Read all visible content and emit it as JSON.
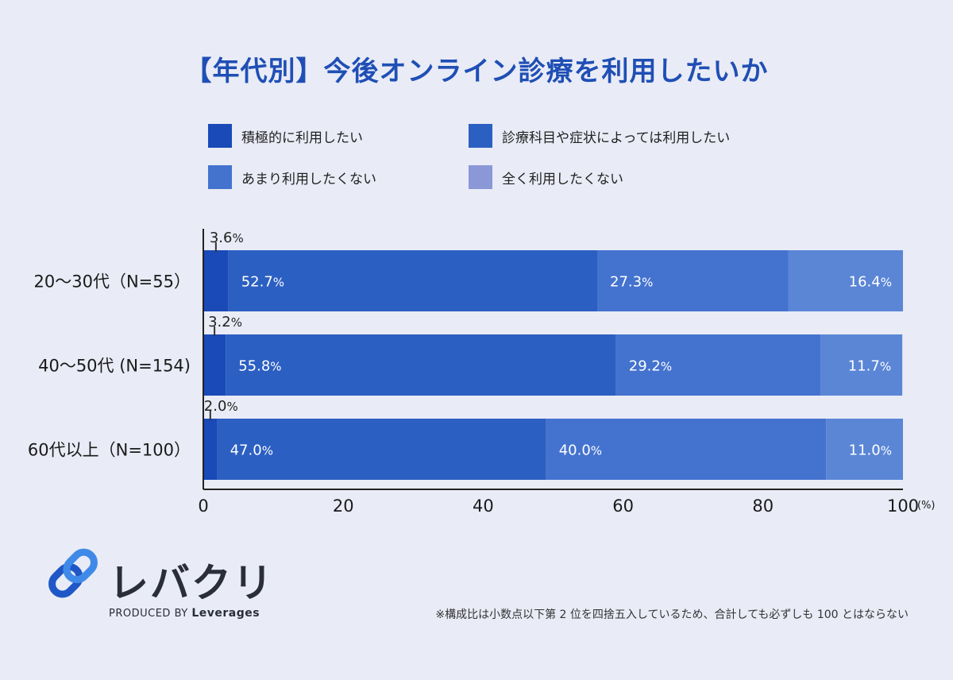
{
  "title": "【年代別】今後オンライン診療を利用したいか",
  "chart_data": {
    "type": "bar",
    "orientation": "horizontal",
    "stacked": true,
    "categories": [
      "20～30代（N=55）",
      "40～50代 (N=154)",
      "60代以上（N=100）"
    ],
    "series": [
      {
        "name": "積極的に利用したい",
        "values": [
          3.6,
          3.2,
          2.0
        ],
        "color": "#1a4ab8"
      },
      {
        "name": "診療科目や症状によっては利用したい",
        "values": [
          52.7,
          55.8,
          47.0
        ],
        "color": "#2c5fc2"
      },
      {
        "name": "あまり利用したくない",
        "values": [
          27.3,
          29.2,
          40.0
        ],
        "color": "#4473cf"
      },
      {
        "name": "全く利用したくない",
        "values": [
          16.4,
          11.7,
          11.0
        ],
        "color": "#5b86d6"
      }
    ],
    "labels": [
      [
        "3.6",
        "52.7",
        "27.3",
        "16.4"
      ],
      [
        "3.2",
        "55.8",
        "29.2",
        "11.7"
      ],
      [
        "2.0",
        "47.0",
        "40.0",
        "11.0"
      ]
    ],
    "value_suffix": "%",
    "xlim": [
      0,
      100
    ],
    "xticks": [
      "0",
      "20",
      "40",
      "60",
      "80",
      "100"
    ],
    "xunit": "(%)"
  },
  "legend": [
    {
      "label": "積極的に利用したい",
      "color": "#1a4ab8"
    },
    {
      "label": "診療科目や症状によっては利用したい",
      "color": "#2c5fc2"
    },
    {
      "label": "あまり利用したくない",
      "color": "#4473cf"
    },
    {
      "label": "全く利用したくない",
      "color": "#8a98d8"
    }
  ],
  "logo": {
    "name": "レバクリ",
    "produced_by": "PRODUCED BY",
    "brand": "Leverages"
  },
  "footnote": "※構成比は小数点以下第 2 位を四捨五入しているため、合計しても必ずしも 100 とはならない"
}
